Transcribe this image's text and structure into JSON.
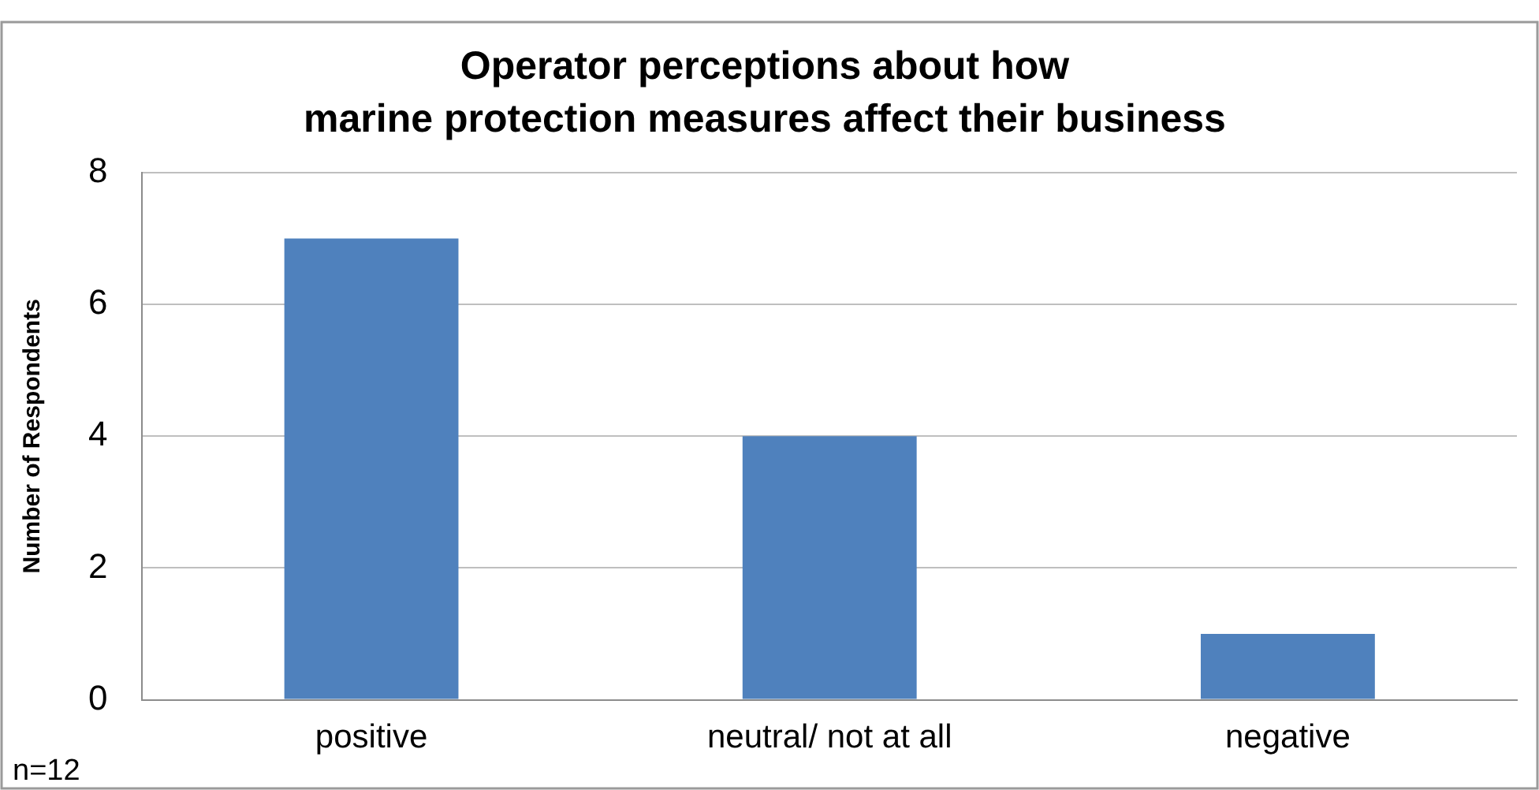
{
  "chart_data": {
    "type": "bar",
    "title": "Operator perceptions about how\nmarine protection measures affect their business",
    "ylabel": "Number of Respondents",
    "categories": [
      "positive",
      "neutral/ not at all",
      "negative"
    ],
    "values": [
      7,
      4,
      1
    ],
    "color": "#4f81bd",
    "ylim": [
      0,
      8
    ],
    "yticks": [
      0,
      2,
      4,
      6,
      8
    ],
    "grid": "y",
    "legend": false,
    "annotations": [
      "n=12"
    ]
  }
}
